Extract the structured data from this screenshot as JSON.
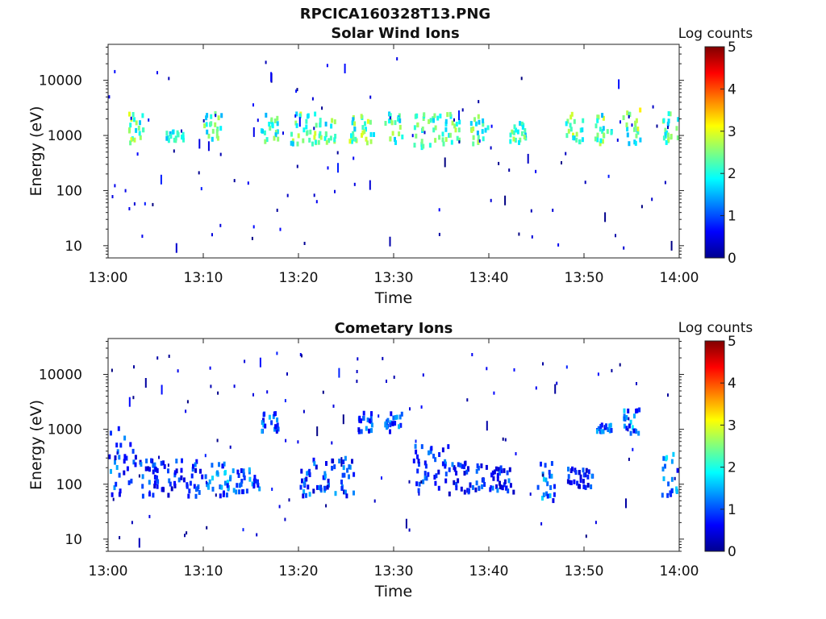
{
  "figure": {
    "filename": "RPCICA160328T13.PNG"
  },
  "chart_data": [
    {
      "type": "heatmap",
      "title": "Solar Wind Ions",
      "xlabel": "Time",
      "ylabel": "Energy (eV)",
      "x_ticks": [
        "13:00",
        "13:10",
        "13:20",
        "13:30",
        "13:40",
        "13:50",
        "14:00"
      ],
      "xlim": [
        "13:00",
        "14:00"
      ],
      "y_scale": "log",
      "y_ticks": [
        10,
        100,
        1000,
        10000
      ],
      "ylim": [
        6,
        45000
      ],
      "colorbar": {
        "label": "Log counts",
        "range": [
          0,
          5
        ],
        "ticks": [
          0,
          1,
          2,
          3,
          4,
          5
        ],
        "colormap": "jet"
      },
      "features": [
        {
          "time_min": [
            2,
            3
          ],
          "energy_ev": [
            700,
            2500
          ],
          "log_counts": [
            1.5,
            3
          ]
        },
        {
          "time_min": [
            6,
            7
          ],
          "energy_ev": [
            800,
            1200
          ],
          "log_counts": [
            1.5,
            2.5
          ]
        },
        {
          "time_min": [
            10,
            11
          ],
          "energy_ev": [
            700,
            2500
          ],
          "log_counts": [
            1.5,
            2.8
          ]
        },
        {
          "time_min": [
            16,
            17
          ],
          "energy_ev": [
            700,
            2500
          ],
          "log_counts": [
            1.5,
            2.8
          ]
        },
        {
          "time_min": [
            19,
            21
          ],
          "energy_ev": [
            700,
            2500
          ],
          "log_counts": [
            1.5,
            3
          ]
        },
        {
          "time_min": [
            22,
            23
          ],
          "energy_ev": [
            700,
            2000
          ],
          "log_counts": [
            1.5,
            2.8
          ]
        },
        {
          "time_min": [
            25,
            27
          ],
          "energy_ev": [
            700,
            2500
          ],
          "log_counts": [
            1.5,
            3
          ]
        },
        {
          "time_min": [
            29,
            30
          ],
          "energy_ev": [
            700,
            2500
          ],
          "log_counts": [
            1.5,
            2.8
          ]
        },
        {
          "time_min": [
            32,
            33
          ],
          "energy_ev": [
            600,
            2500
          ],
          "log_counts": [
            1.5,
            2.8
          ]
        },
        {
          "time_min": [
            34,
            36
          ],
          "energy_ev": [
            700,
            2500
          ],
          "log_counts": [
            1.5,
            2.8
          ]
        },
        {
          "time_min": [
            38,
            39
          ],
          "energy_ev": [
            700,
            2500
          ],
          "log_counts": [
            1.5,
            2.8
          ]
        },
        {
          "time_min": [
            42,
            43
          ],
          "energy_ev": [
            700,
            2000
          ],
          "log_counts": [
            1.5,
            2.8
          ]
        },
        {
          "time_min": [
            48,
            49
          ],
          "energy_ev": [
            700,
            2500
          ],
          "log_counts": [
            1.5,
            3
          ]
        },
        {
          "time_min": [
            51,
            52
          ],
          "energy_ev": [
            700,
            2500
          ],
          "log_counts": [
            1.5,
            3
          ]
        },
        {
          "time_min": [
            54,
            55
          ],
          "energy_ev": [
            700,
            3000
          ],
          "log_counts": [
            1.5,
            3.2
          ]
        },
        {
          "time_min": [
            58,
            59
          ],
          "energy_ev": [
            700,
            2500
          ],
          "log_counts": [
            1.5,
            2.8
          ]
        }
      ]
    },
    {
      "type": "heatmap",
      "title": "Cometary Ions",
      "xlabel": "Time",
      "ylabel": "Energy (eV)",
      "x_ticks": [
        "13:00",
        "13:10",
        "13:20",
        "13:30",
        "13:40",
        "13:50",
        "14:00"
      ],
      "xlim": [
        "13:00",
        "14:00"
      ],
      "y_scale": "log",
      "y_ticks": [
        10,
        100,
        1000,
        10000
      ],
      "ylim": [
        6,
        45000
      ],
      "colorbar": {
        "label": "Log counts",
        "range": [
          0,
          5
        ],
        "ticks": [
          0,
          1,
          2,
          3,
          4,
          5
        ],
        "colormap": "jet"
      },
      "features": [
        {
          "time_min": [
            0,
            2
          ],
          "energy_ev": [
            60,
            1200
          ],
          "log_counts": [
            0.3,
            1.5
          ]
        },
        {
          "time_min": [
            3,
            9
          ],
          "energy_ev": [
            60,
            300
          ],
          "log_counts": [
            0.3,
            1.3
          ]
        },
        {
          "time_min": [
            10,
            12
          ],
          "energy_ev": [
            50,
            250
          ],
          "log_counts": [
            0.5,
            1.8
          ]
        },
        {
          "time_min": [
            13,
            15
          ],
          "energy_ev": [
            70,
            200
          ],
          "log_counts": [
            0.5,
            1.6
          ]
        },
        {
          "time_min": [
            20,
            25
          ],
          "energy_ev": [
            60,
            300
          ],
          "log_counts": [
            0.3,
            1.5
          ]
        },
        {
          "time_min": [
            32,
            35
          ],
          "energy_ev": [
            60,
            500
          ],
          "log_counts": [
            0.3,
            1.3
          ]
        },
        {
          "time_min": [
            36,
            39
          ],
          "energy_ev": [
            70,
            250
          ],
          "log_counts": [
            0.3,
            1.3
          ]
        },
        {
          "time_min": [
            40,
            42
          ],
          "energy_ev": [
            70,
            200
          ],
          "log_counts": [
            0.3,
            1.3
          ]
        },
        {
          "time_min": [
            45,
            46
          ],
          "energy_ev": [
            50,
            250
          ],
          "log_counts": [
            0.5,
            1.8
          ]
        },
        {
          "time_min": [
            48,
            50
          ],
          "energy_ev": [
            80,
            200
          ],
          "log_counts": [
            0.3,
            1.3
          ]
        },
        {
          "time_min": [
            58,
            59
          ],
          "energy_ev": [
            50,
            400
          ],
          "log_counts": [
            0.5,
            2
          ]
        },
        {
          "time_min": [
            54,
            55
          ],
          "energy_ev": [
            800,
            2500
          ],
          "log_counts": [
            0.5,
            1.8
          ]
        },
        {
          "time_min": [
            16,
            17
          ],
          "energy_ev": [
            900,
            2000
          ],
          "log_counts": [
            0.5,
            1.6
          ]
        },
        {
          "time_min": [
            26,
            27
          ],
          "energy_ev": [
            900,
            2000
          ],
          "log_counts": [
            0.5,
            1.5
          ]
        },
        {
          "time_min": [
            29,
            30
          ],
          "energy_ev": [
            900,
            2000
          ],
          "log_counts": [
            0.5,
            1.5
          ]
        },
        {
          "time_min": [
            51,
            52
          ],
          "energy_ev": [
            900,
            1200
          ],
          "log_counts": [
            0.5,
            1.6
          ]
        }
      ]
    }
  ]
}
